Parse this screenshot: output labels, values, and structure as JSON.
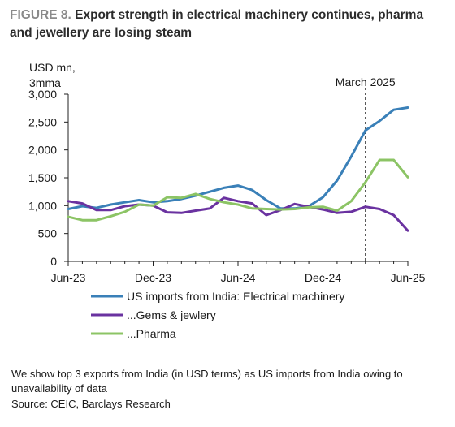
{
  "figure": {
    "label": "FIGURE 8.",
    "title": "Export strength in electrical machinery continues, pharma and jewellery are losing steam"
  },
  "chart_data": {
    "type": "line",
    "ylabel_line1": "USD mn,",
    "ylabel_line2": "3mma",
    "ylim": [
      0,
      3000
    ],
    "yticks": [
      0,
      500,
      1000,
      1500,
      2000,
      2500,
      3000
    ],
    "ytick_labels": [
      "0",
      "500",
      "1,000",
      "1,500",
      "2,000",
      "2,500",
      "3,000"
    ],
    "x": [
      "Jun-23",
      "Jul-23",
      "Aug-23",
      "Sep-23",
      "Oct-23",
      "Nov-23",
      "Dec-23",
      "Jan-24",
      "Feb-24",
      "Mar-24",
      "Apr-24",
      "May-24",
      "Jun-24",
      "Jul-24",
      "Aug-24",
      "Sep-24",
      "Oct-24",
      "Nov-24",
      "Dec-24",
      "Jan-25",
      "Feb-25",
      "Mar-25",
      "Apr-25",
      "May-25",
      "Jun-25"
    ],
    "xtick_labels": [
      "Jun-23",
      "Dec-23",
      "Jun-24",
      "Dec-24",
      "Jun-25"
    ],
    "annotation": {
      "label": "March 2025",
      "x": "Mar-25"
    },
    "grid": false,
    "legend_position": "bottom",
    "series": [
      {
        "name": "US imports from India: Electrical machinery",
        "color": "#3a80b8",
        "values": [
          940,
          990,
          960,
          1020,
          1060,
          1100,
          1060,
          1080,
          1120,
          1180,
          1250,
          1320,
          1360,
          1280,
          1100,
          950,
          950,
          990,
          1150,
          1450,
          1880,
          2350,
          2520,
          2720,
          2760
        ]
      },
      {
        "name": "...Gems & jewlery",
        "color": "#6a32a0",
        "values": [
          1080,
          1040,
          920,
          920,
          990,
          1020,
          1000,
          880,
          870,
          910,
          950,
          1140,
          1080,
          1040,
          830,
          920,
          1030,
          980,
          930,
          870,
          890,
          980,
          940,
          830,
          550
        ]
      },
      {
        "name": "...Pharma",
        "color": "#8cc465",
        "values": [
          800,
          740,
          740,
          810,
          890,
          1020,
          1000,
          1150,
          1140,
          1210,
          1120,
          1060,
          1020,
          950,
          940,
          930,
          940,
          970,
          980,
          910,
          1080,
          1420,
          1820,
          1820,
          1510
        ]
      }
    ]
  },
  "notes": {
    "text": "We show top 3 exports from India (in USD terms) as US imports from India owing to unavailability of data",
    "source": "Source: CEIC, Barclays Research"
  }
}
